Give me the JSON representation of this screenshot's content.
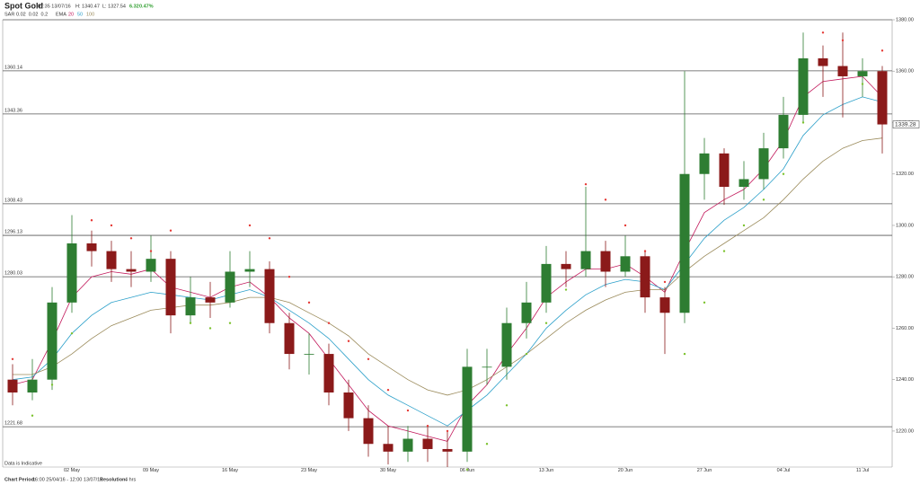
{
  "header": {
    "title": "Spot Gold",
    "time": "07:35 13/07/16",
    "high": "H: 1340.47",
    "low": "L: 1327.54",
    "change": "6.32",
    "change_pct": "0.47%",
    "sar_label": "SAR",
    "sar_params": "0.02  0.02  0.2",
    "ema_label": "EMA"
  },
  "footer": {
    "note": "Data is Indicative",
    "period_label": "Chart Period:",
    "period": "16:00 25/04/16 - 12:00 13/07/16",
    "resolution_label": "Resolution:",
    "resolution": "4 hrs"
  },
  "chart_data": {
    "type": "candlestick",
    "categories": [
      null,
      null,
      null,
      "02 May",
      null,
      null,
      null,
      "09 May",
      null,
      null,
      null,
      "16 May",
      null,
      null,
      null,
      "23 May",
      null,
      null,
      null,
      "30 May",
      null,
      null,
      null,
      "06 Jun",
      null,
      null,
      null,
      "13 Jun",
      null,
      null,
      null,
      "20 Jun",
      null,
      null,
      null,
      "27 Jun",
      null,
      null,
      null,
      "04 Jul",
      null,
      null,
      null,
      "11 Jul",
      null
    ],
    "open": [
      1240,
      1235,
      1240,
      1270,
      1293,
      1290,
      1283,
      1282,
      1287,
      1265,
      1272,
      1270,
      1282,
      1283,
      1262,
      1250,
      1250,
      1235,
      1225,
      1215,
      1212,
      1217,
      1213,
      1212,
      1245,
      1245,
      1262,
      1270,
      1285,
      1283,
      1290,
      1282,
      1288,
      1272,
      1266,
      1320,
      1328,
      1315,
      1318,
      1330,
      1343,
      1365,
      1362,
      1358,
      1360
    ],
    "high": [
      1246,
      1248,
      1276,
      1304,
      1298,
      1294,
      1290,
      1296,
      1290,
      1280,
      1278,
      1290,
      1290,
      1286,
      1266,
      1258,
      1254,
      1240,
      1230,
      1222,
      1222,
      1222,
      1220,
      1252,
      1252,
      1268,
      1278,
      1292,
      1290,
      1315,
      1294,
      1296,
      1290,
      1276,
      1360,
      1334,
      1330,
      1325,
      1336,
      1350,
      1375,
      1370,
      1375,
      1365,
      1362
    ],
    "low": [
      1230,
      1232,
      1236,
      1266,
      1284,
      1278,
      1276,
      1278,
      1258,
      1262,
      1264,
      1268,
      1276,
      1258,
      1244,
      1242,
      1230,
      1220,
      1210,
      1207,
      1208,
      1208,
      1206,
      1208,
      1238,
      1240,
      1256,
      1266,
      1276,
      1280,
      1276,
      1280,
      1266,
      1250,
      1262,
      1310,
      1308,
      1310,
      1314,
      1326,
      1340,
      1350,
      1342,
      1350,
      1328
    ],
    "close": [
      1235,
      1240,
      1270,
      1293,
      1290,
      1283,
      1282,
      1287,
      1265,
      1272,
      1270,
      1282,
      1283,
      1262,
      1250,
      1250,
      1235,
      1225,
      1215,
      1212,
      1217,
      1213,
      1212,
      1245,
      1245,
      1262,
      1270,
      1285,
      1283,
      1290,
      1282,
      1288,
      1272,
      1266,
      1320,
      1328,
      1315,
      1318,
      1330,
      1343,
      1365,
      1362,
      1358,
      1360,
      1339.28
    ],
    "up_color": "#2e7d32",
    "down_color": "#8b1a1a",
    "series": [
      {
        "name": "20",
        "color": "#c2185b",
        "values": [
          1238,
          1240,
          1255,
          1272,
          1280,
          1282,
          1281,
          1283,
          1276,
          1274,
          1272,
          1276,
          1278,
          1272,
          1264,
          1258,
          1248,
          1238,
          1228,
          1222,
          1220,
          1218,
          1216,
          1230,
          1238,
          1250,
          1260,
          1272,
          1278,
          1283,
          1283,
          1285,
          1280,
          1274,
          1290,
          1305,
          1310,
          1314,
          1322,
          1333,
          1350,
          1356,
          1357,
          1358,
          1350
        ]
      },
      {
        "name": "50",
        "color": "#2a9fc9",
        "values": [
          1240,
          1241,
          1248,
          1258,
          1265,
          1270,
          1272,
          1274,
          1273,
          1272,
          1271,
          1273,
          1275,
          1272,
          1267,
          1262,
          1256,
          1248,
          1240,
          1234,
          1230,
          1226,
          1222,
          1228,
          1234,
          1242,
          1250,
          1260,
          1267,
          1273,
          1277,
          1279,
          1278,
          1275,
          1285,
          1295,
          1302,
          1307,
          1314,
          1322,
          1335,
          1343,
          1347,
          1350,
          1348
        ]
      },
      {
        "name": "100",
        "color": "#9a8a5a",
        "values": [
          1242,
          1242,
          1245,
          1250,
          1256,
          1261,
          1264,
          1267,
          1268,
          1269,
          1269,
          1270,
          1272,
          1272,
          1270,
          1266,
          1262,
          1257,
          1250,
          1245,
          1240,
          1236,
          1234,
          1236,
          1240,
          1245,
          1250,
          1256,
          1262,
          1267,
          1271,
          1274,
          1275,
          1275,
          1282,
          1288,
          1293,
          1298,
          1303,
          1310,
          1318,
          1325,
          1330,
          1333,
          1334
        ]
      }
    ],
    "sar": [
      1248,
      1226,
      1238,
      1258,
      1302,
      1300,
      1295,
      1290,
      1298,
      1262,
      1260,
      1262,
      1300,
      1295,
      1280,
      1270,
      1262,
      1255,
      1248,
      1236,
      1228,
      1222,
      1220,
      1205,
      1215,
      1230,
      1250,
      1262,
      1275,
      1316,
      1310,
      1300,
      1290,
      1278,
      1250,
      1270,
      1290,
      1300,
      1310,
      1320,
      1340,
      1375,
      1372,
      1355,
      1368
    ],
    "sar_up_color": "#7cc22e",
    "sar_down_color": "#e53935",
    "levels": [
      1360.14,
      1343.36,
      1308.43,
      1296.13,
      1280.03,
      1221.68
    ],
    "last_price": 1339.28,
    "ylim": [
      1206,
      1380
    ],
    "yticks": [
      {
        "value": 1220,
        "label": "1220.00"
      },
      {
        "value": 1240,
        "label": "1240.00"
      },
      {
        "value": 1260,
        "label": "1260.00"
      },
      {
        "value": 1280,
        "label": "1280.00"
      },
      {
        "value": 1300,
        "label": "1300.00"
      },
      {
        "value": 1320,
        "label": "1320.00"
      },
      {
        "value": 1340,
        "label": "1340.00"
      },
      {
        "value": 1360,
        "label": "1360.00"
      },
      {
        "value": 1380,
        "label": "1380.00"
      }
    ]
  }
}
